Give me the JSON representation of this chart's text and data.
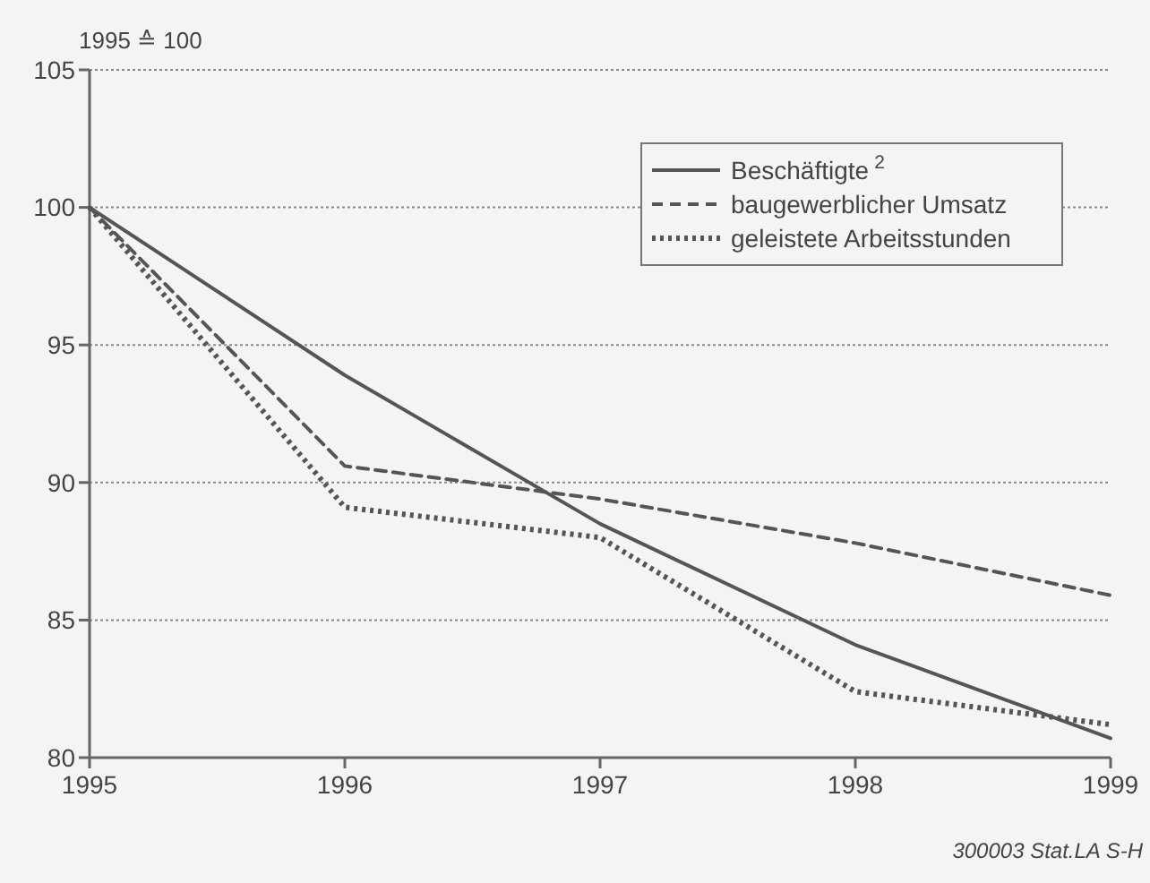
{
  "chart_data": {
    "type": "line",
    "ylabel": "1995 ≙ 100",
    "x": [
      1995,
      1996,
      1997,
      1998,
      1999
    ],
    "xlim": [
      1995,
      1999
    ],
    "xticks": [
      1995,
      1996,
      1997,
      1998,
      1999
    ],
    "ylim": [
      80,
      105
    ],
    "yticks": [
      80,
      85,
      90,
      95,
      100,
      105
    ],
    "grid": "y",
    "legend": "top right",
    "marker": "none",
    "series": [
      {
        "name": "Beschäftigte$^{2}$",
        "color": "#555555",
        "line_style": "solid",
        "values": [
          100,
          93.9,
          88.5,
          84.1,
          80.7
        ]
      },
      {
        "name": "baugewerblicher Umsatz",
        "color": "#555555",
        "line_style": "dashed",
        "values": [
          100,
          90.6,
          89.4,
          87.8,
          85.9
        ]
      },
      {
        "name": "geleistete Arbeitsstunden",
        "color": "#555555",
        "line_style": "dotted",
        "values": [
          100,
          89.1,
          88.0,
          82.4,
          81.2
        ]
      }
    ],
    "annotations": [
      "300003 Stat.LA S-H"
    ]
  }
}
